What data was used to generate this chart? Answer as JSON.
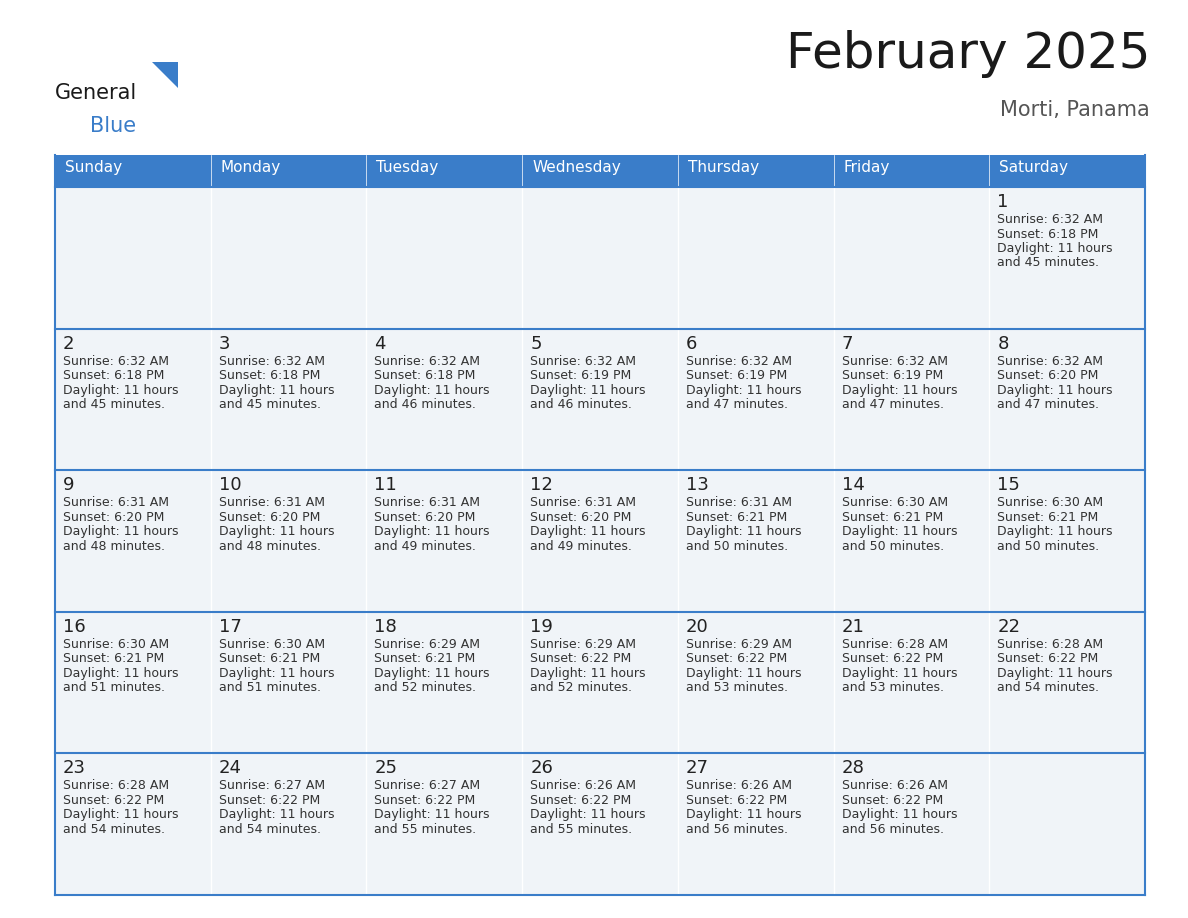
{
  "title": "February 2025",
  "subtitle": "Morti, Panama",
  "header_bg": "#3A7DC9",
  "header_text_color": "#FFFFFF",
  "cell_bg": "#F0F4F8",
  "border_color": "#3A7DC9",
  "row_separator_color": "#3A7DC9",
  "day_headers": [
    "Sunday",
    "Monday",
    "Tuesday",
    "Wednesday",
    "Thursday",
    "Friday",
    "Saturday"
  ],
  "title_color": "#1a1a1a",
  "subtitle_color": "#555555",
  "day_num_color": "#222222",
  "cell_text_color": "#333333",
  "calendar_data": [
    [
      null,
      null,
      null,
      null,
      null,
      null,
      {
        "day": 1,
        "sunrise": "6:32 AM",
        "sunset": "6:18 PM",
        "daylight": "11 hours and 45 minutes."
      }
    ],
    [
      {
        "day": 2,
        "sunrise": "6:32 AM",
        "sunset": "6:18 PM",
        "daylight": "11 hours and 45 minutes."
      },
      {
        "day": 3,
        "sunrise": "6:32 AM",
        "sunset": "6:18 PM",
        "daylight": "11 hours and 45 minutes."
      },
      {
        "day": 4,
        "sunrise": "6:32 AM",
        "sunset": "6:18 PM",
        "daylight": "11 hours and 46 minutes."
      },
      {
        "day": 5,
        "sunrise": "6:32 AM",
        "sunset": "6:19 PM",
        "daylight": "11 hours and 46 minutes."
      },
      {
        "day": 6,
        "sunrise": "6:32 AM",
        "sunset": "6:19 PM",
        "daylight": "11 hours and 47 minutes."
      },
      {
        "day": 7,
        "sunrise": "6:32 AM",
        "sunset": "6:19 PM",
        "daylight": "11 hours and 47 minutes."
      },
      {
        "day": 8,
        "sunrise": "6:32 AM",
        "sunset": "6:20 PM",
        "daylight": "11 hours and 47 minutes."
      }
    ],
    [
      {
        "day": 9,
        "sunrise": "6:31 AM",
        "sunset": "6:20 PM",
        "daylight": "11 hours and 48 minutes."
      },
      {
        "day": 10,
        "sunrise": "6:31 AM",
        "sunset": "6:20 PM",
        "daylight": "11 hours and 48 minutes."
      },
      {
        "day": 11,
        "sunrise": "6:31 AM",
        "sunset": "6:20 PM",
        "daylight": "11 hours and 49 minutes."
      },
      {
        "day": 12,
        "sunrise": "6:31 AM",
        "sunset": "6:20 PM",
        "daylight": "11 hours and 49 minutes."
      },
      {
        "day": 13,
        "sunrise": "6:31 AM",
        "sunset": "6:21 PM",
        "daylight": "11 hours and 50 minutes."
      },
      {
        "day": 14,
        "sunrise": "6:30 AM",
        "sunset": "6:21 PM",
        "daylight": "11 hours and 50 minutes."
      },
      {
        "day": 15,
        "sunrise": "6:30 AM",
        "sunset": "6:21 PM",
        "daylight": "11 hours and 50 minutes."
      }
    ],
    [
      {
        "day": 16,
        "sunrise": "6:30 AM",
        "sunset": "6:21 PM",
        "daylight": "11 hours and 51 minutes."
      },
      {
        "day": 17,
        "sunrise": "6:30 AM",
        "sunset": "6:21 PM",
        "daylight": "11 hours and 51 minutes."
      },
      {
        "day": 18,
        "sunrise": "6:29 AM",
        "sunset": "6:21 PM",
        "daylight": "11 hours and 52 minutes."
      },
      {
        "day": 19,
        "sunrise": "6:29 AM",
        "sunset": "6:22 PM",
        "daylight": "11 hours and 52 minutes."
      },
      {
        "day": 20,
        "sunrise": "6:29 AM",
        "sunset": "6:22 PM",
        "daylight": "11 hours and 53 minutes."
      },
      {
        "day": 21,
        "sunrise": "6:28 AM",
        "sunset": "6:22 PM",
        "daylight": "11 hours and 53 minutes."
      },
      {
        "day": 22,
        "sunrise": "6:28 AM",
        "sunset": "6:22 PM",
        "daylight": "11 hours and 54 minutes."
      }
    ],
    [
      {
        "day": 23,
        "sunrise": "6:28 AM",
        "sunset": "6:22 PM",
        "daylight": "11 hours and 54 minutes."
      },
      {
        "day": 24,
        "sunrise": "6:27 AM",
        "sunset": "6:22 PM",
        "daylight": "11 hours and 54 minutes."
      },
      {
        "day": 25,
        "sunrise": "6:27 AM",
        "sunset": "6:22 PM",
        "daylight": "11 hours and 55 minutes."
      },
      {
        "day": 26,
        "sunrise": "6:26 AM",
        "sunset": "6:22 PM",
        "daylight": "11 hours and 55 minutes."
      },
      {
        "day": 27,
        "sunrise": "6:26 AM",
        "sunset": "6:22 PM",
        "daylight": "11 hours and 56 minutes."
      },
      {
        "day": 28,
        "sunrise": "6:26 AM",
        "sunset": "6:22 PM",
        "daylight": "11 hours and 56 minutes."
      },
      null
    ]
  ],
  "logo_general_color": "#1a1a1a",
  "logo_blue_color": "#3A7DC9",
  "figsize": [
    11.88,
    9.18
  ],
  "dpi": 100
}
